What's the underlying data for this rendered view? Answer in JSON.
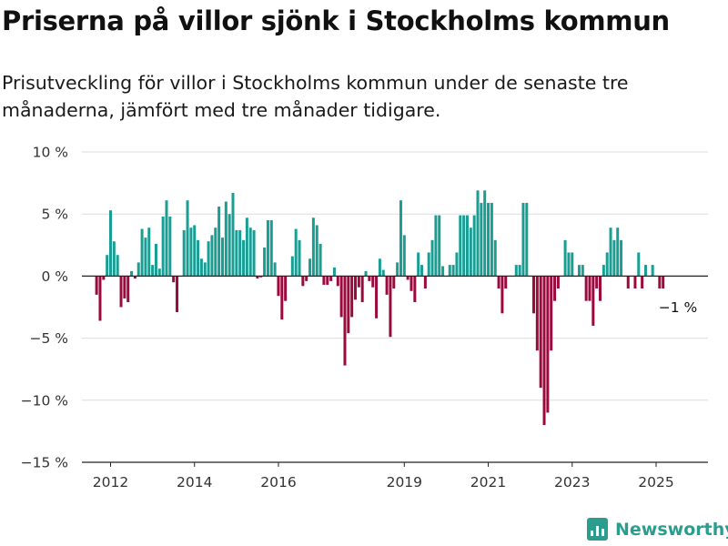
{
  "title": "Priserna på villor sjönk i Stockholms kommun",
  "subtitle": "Prisutveckling för villor i Stockholms kommun under de senaste tre månaderna, jämfört med tre månader tidigare.",
  "brand": "Newsworthy",
  "colors": {
    "positive": "#1a9e94",
    "negative": "#9b0a3d",
    "grid": "#dddddd",
    "axis": "#222222",
    "brand": "#2a9d8f"
  },
  "chart_data": {
    "type": "bar",
    "x_start": "2011-09",
    "x_frequency": "monthly",
    "x_ticks": [
      {
        "date": "2012-01",
        "label": "2012"
      },
      {
        "date": "2014-01",
        "label": "2014"
      },
      {
        "date": "2016-01",
        "label": "2016"
      },
      {
        "date": "2019-01",
        "label": "2019"
      },
      {
        "date": "2021-01",
        "label": "2021"
      },
      {
        "date": "2023-01",
        "label": "2023"
      },
      {
        "date": "2025-01",
        "label": "2025"
      }
    ],
    "y_ticks": [
      {
        "value": 10,
        "label": "10 %"
      },
      {
        "value": 5,
        "label": "5 %"
      },
      {
        "value": 0,
        "label": "0 %"
      },
      {
        "value": -5,
        "label": "−5 %"
      },
      {
        "value": -10,
        "label": "−10 %"
      },
      {
        "value": -15,
        "label": "−15 %"
      }
    ],
    "ylim": [
      -15,
      10
    ],
    "grid": true,
    "annotation": {
      "text": "−1 %",
      "value": -1
    },
    "values": [
      -1.5,
      -3.6,
      -0.3,
      1.7,
      5.3,
      2.8,
      1.7,
      -2.5,
      -1.8,
      -2.1,
      0.4,
      -0.2,
      1.1,
      3.8,
      3.1,
      3.9,
      0.9,
      2.6,
      0.6,
      4.8,
      6.1,
      4.8,
      -0.5,
      -2.9,
      0.0,
      3.7,
      6.1,
      3.9,
      4.1,
      2.9,
      1.4,
      1.1,
      2.8,
      3.3,
      3.9,
      5.6,
      3.1,
      6.0,
      5.0,
      6.7,
      3.7,
      3.7,
      2.9,
      4.7,
      3.9,
      3.7,
      -0.2,
      -0.1,
      2.3,
      4.5,
      4.5,
      1.1,
      -1.6,
      -3.5,
      -2.0,
      0.0,
      1.6,
      3.8,
      2.9,
      -0.8,
      -0.4,
      1.4,
      4.7,
      4.1,
      2.6,
      -0.7,
      -0.7,
      -0.4,
      0.7,
      -0.8,
      -3.3,
      -7.2,
      -4.6,
      -3.3,
      -1.9,
      -0.9,
      -2.1,
      0.4,
      -0.4,
      -0.9,
      -3.4,
      1.4,
      0.5,
      -1.5,
      -4.9,
      -1.0,
      1.1,
      6.1,
      3.3,
      -0.3,
      -1.2,
      -2.1,
      1.9,
      0.9,
      -1.0,
      1.9,
      2.9,
      4.9,
      4.9,
      0.8,
      0.0,
      0.9,
      0.9,
      1.9,
      4.9,
      4.9,
      4.9,
      3.9,
      4.9,
      6.9,
      5.9,
      6.9,
      5.9,
      5.9,
      2.9,
      -1.0,
      -3.0,
      -1.0,
      0.0,
      0.0,
      0.9,
      0.9,
      5.9,
      5.9,
      0.0,
      -3.0,
      -6.0,
      -9.0,
      -12.0,
      -11.0,
      -6.0,
      -2.0,
      -1.0,
      0.0,
      2.9,
      1.9,
      1.9,
      0.0,
      0.9,
      0.9,
      -2.0,
      -2.0,
      -4.0,
      -1.0,
      -2.0,
      0.9,
      1.9,
      3.9,
      2.9,
      3.9,
      2.9,
      0.0,
      -1.0,
      0.0,
      -1.0,
      1.9,
      -1.0,
      0.9,
      0.0,
      0.9,
      0.0,
      -1.0,
      -1.0
    ]
  }
}
